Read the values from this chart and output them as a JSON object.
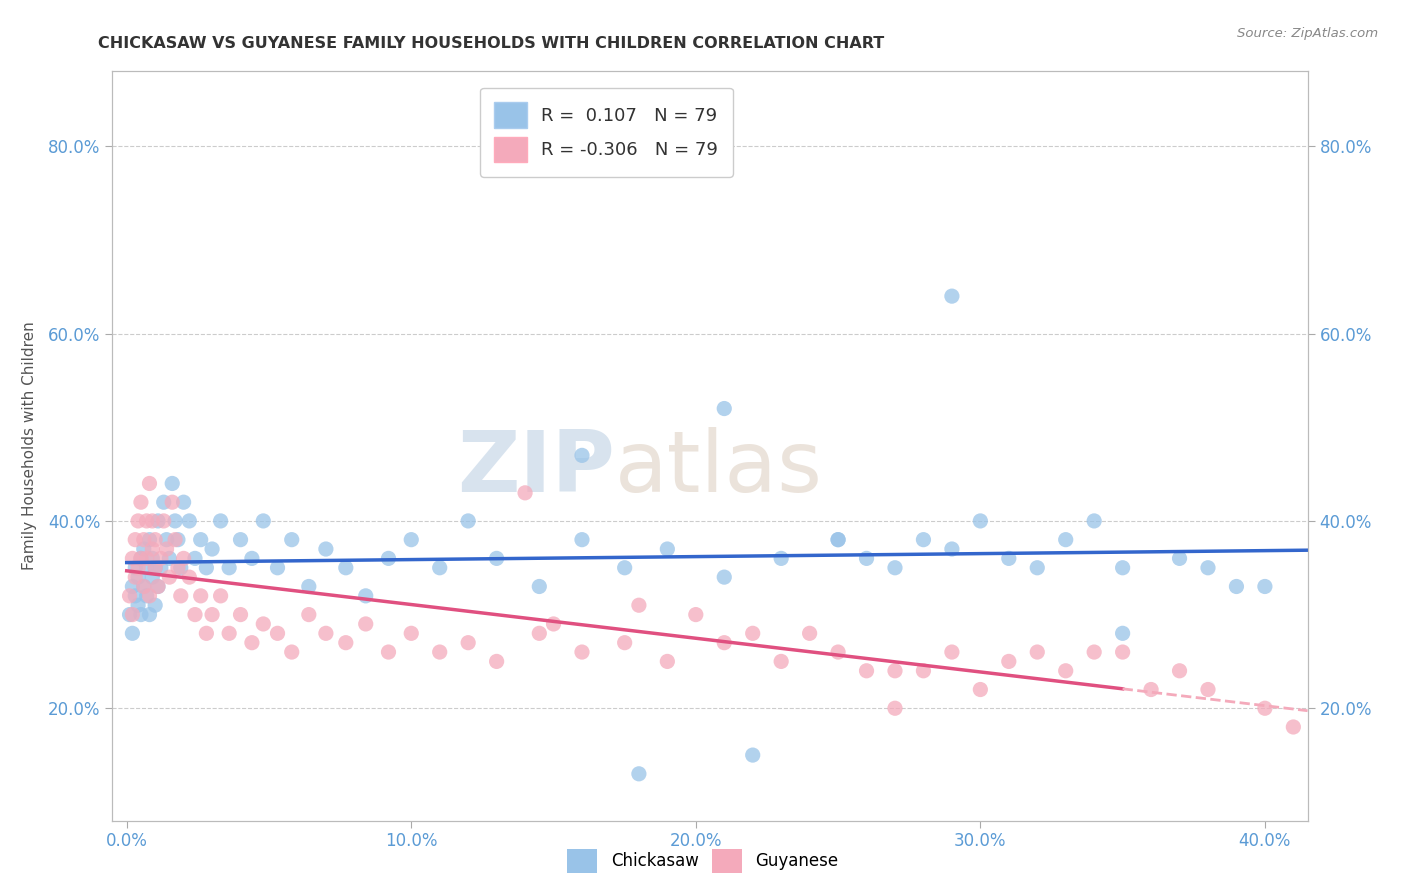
{
  "title": "CHICKASAW VS GUYANESE FAMILY HOUSEHOLDS WITH CHILDREN CORRELATION CHART",
  "source": "Source: ZipAtlas.com",
  "ylabel_label": "Family Households with Children",
  "xlim": [
    -0.005,
    0.415
  ],
  "ylim": [
    0.08,
    0.88
  ],
  "xtick_labels": [
    "0.0%",
    "10.0%",
    "20.0%",
    "30.0%",
    "40.0%"
  ],
  "xtick_values": [
    0.0,
    0.1,
    0.2,
    0.3,
    0.4
  ],
  "ytick_labels": [
    "20.0%",
    "40.0%",
    "60.0%",
    "80.0%"
  ],
  "ytick_values": [
    0.2,
    0.4,
    0.6,
    0.8
  ],
  "chickasaw_color": "#99C3E8",
  "guyanese_color": "#F4AABB",
  "chickasaw_line_color": "#3366CC",
  "guyanese_line_color": "#E05080",
  "guyanese_line_dash_color": "#F4AABB",
  "chickasaw_R": 0.107,
  "guyanese_R": -0.306,
  "chickasaw_N": 79,
  "guyanese_N": 79,
  "watermark_zip": "ZIP",
  "watermark_atlas": "atlas",
  "background_color": "#FFFFFF",
  "grid_color": "#CCCCCC",
  "chickasaw_x": [
    0.001,
    0.002,
    0.002,
    0.003,
    0.003,
    0.004,
    0.004,
    0.005,
    0.005,
    0.006,
    0.006,
    0.007,
    0.007,
    0.008,
    0.008,
    0.009,
    0.009,
    0.01,
    0.01,
    0.011,
    0.011,
    0.012,
    0.013,
    0.014,
    0.015,
    0.016,
    0.017,
    0.018,
    0.019,
    0.02,
    0.022,
    0.024,
    0.026,
    0.028,
    0.03,
    0.033,
    0.036,
    0.04,
    0.044,
    0.048,
    0.053,
    0.058,
    0.064,
    0.07,
    0.077,
    0.084,
    0.092,
    0.1,
    0.11,
    0.12,
    0.13,
    0.145,
    0.16,
    0.175,
    0.19,
    0.21,
    0.23,
    0.25,
    0.27,
    0.29,
    0.31,
    0.33,
    0.35,
    0.37,
    0.39,
    0.16,
    0.21,
    0.25,
    0.3,
    0.35,
    0.28,
    0.32,
    0.18,
    0.22,
    0.26,
    0.38,
    0.4,
    0.34,
    0.29
  ],
  "chickasaw_y": [
    0.3,
    0.33,
    0.28,
    0.35,
    0.32,
    0.31,
    0.34,
    0.3,
    0.36,
    0.33,
    0.37,
    0.32,
    0.35,
    0.3,
    0.38,
    0.34,
    0.36,
    0.31,
    0.35,
    0.33,
    0.4,
    0.35,
    0.42,
    0.38,
    0.36,
    0.44,
    0.4,
    0.38,
    0.35,
    0.42,
    0.4,
    0.36,
    0.38,
    0.35,
    0.37,
    0.4,
    0.35,
    0.38,
    0.36,
    0.4,
    0.35,
    0.38,
    0.33,
    0.37,
    0.35,
    0.32,
    0.36,
    0.38,
    0.35,
    0.4,
    0.36,
    0.33,
    0.38,
    0.35,
    0.37,
    0.34,
    0.36,
    0.38,
    0.35,
    0.37,
    0.36,
    0.38,
    0.35,
    0.36,
    0.33,
    0.47,
    0.52,
    0.38,
    0.4,
    0.28,
    0.38,
    0.35,
    0.13,
    0.15,
    0.36,
    0.35,
    0.33,
    0.4,
    0.64
  ],
  "guyanese_x": [
    0.001,
    0.002,
    0.002,
    0.003,
    0.003,
    0.004,
    0.004,
    0.005,
    0.005,
    0.006,
    0.006,
    0.007,
    0.007,
    0.008,
    0.008,
    0.009,
    0.009,
    0.01,
    0.01,
    0.011,
    0.012,
    0.013,
    0.014,
    0.015,
    0.016,
    0.017,
    0.018,
    0.019,
    0.02,
    0.022,
    0.024,
    0.026,
    0.028,
    0.03,
    0.033,
    0.036,
    0.04,
    0.044,
    0.048,
    0.053,
    0.058,
    0.064,
    0.07,
    0.077,
    0.084,
    0.092,
    0.1,
    0.11,
    0.12,
    0.13,
    0.145,
    0.16,
    0.175,
    0.19,
    0.21,
    0.23,
    0.25,
    0.27,
    0.29,
    0.31,
    0.33,
    0.35,
    0.37,
    0.2,
    0.24,
    0.28,
    0.32,
    0.36,
    0.4,
    0.15,
    0.18,
    0.26,
    0.3,
    0.34,
    0.38,
    0.22,
    0.27,
    0.41,
    0.14
  ],
  "guyanese_y": [
    0.32,
    0.36,
    0.3,
    0.38,
    0.34,
    0.4,
    0.35,
    0.42,
    0.36,
    0.38,
    0.33,
    0.4,
    0.36,
    0.32,
    0.44,
    0.37,
    0.4,
    0.35,
    0.38,
    0.33,
    0.36,
    0.4,
    0.37,
    0.34,
    0.42,
    0.38,
    0.35,
    0.32,
    0.36,
    0.34,
    0.3,
    0.32,
    0.28,
    0.3,
    0.32,
    0.28,
    0.3,
    0.27,
    0.29,
    0.28,
    0.26,
    0.3,
    0.28,
    0.27,
    0.29,
    0.26,
    0.28,
    0.26,
    0.27,
    0.25,
    0.28,
    0.26,
    0.27,
    0.25,
    0.27,
    0.25,
    0.26,
    0.24,
    0.26,
    0.25,
    0.24,
    0.26,
    0.24,
    0.3,
    0.28,
    0.24,
    0.26,
    0.22,
    0.2,
    0.29,
    0.31,
    0.24,
    0.22,
    0.26,
    0.22,
    0.28,
    0.2,
    0.18,
    0.43
  ]
}
